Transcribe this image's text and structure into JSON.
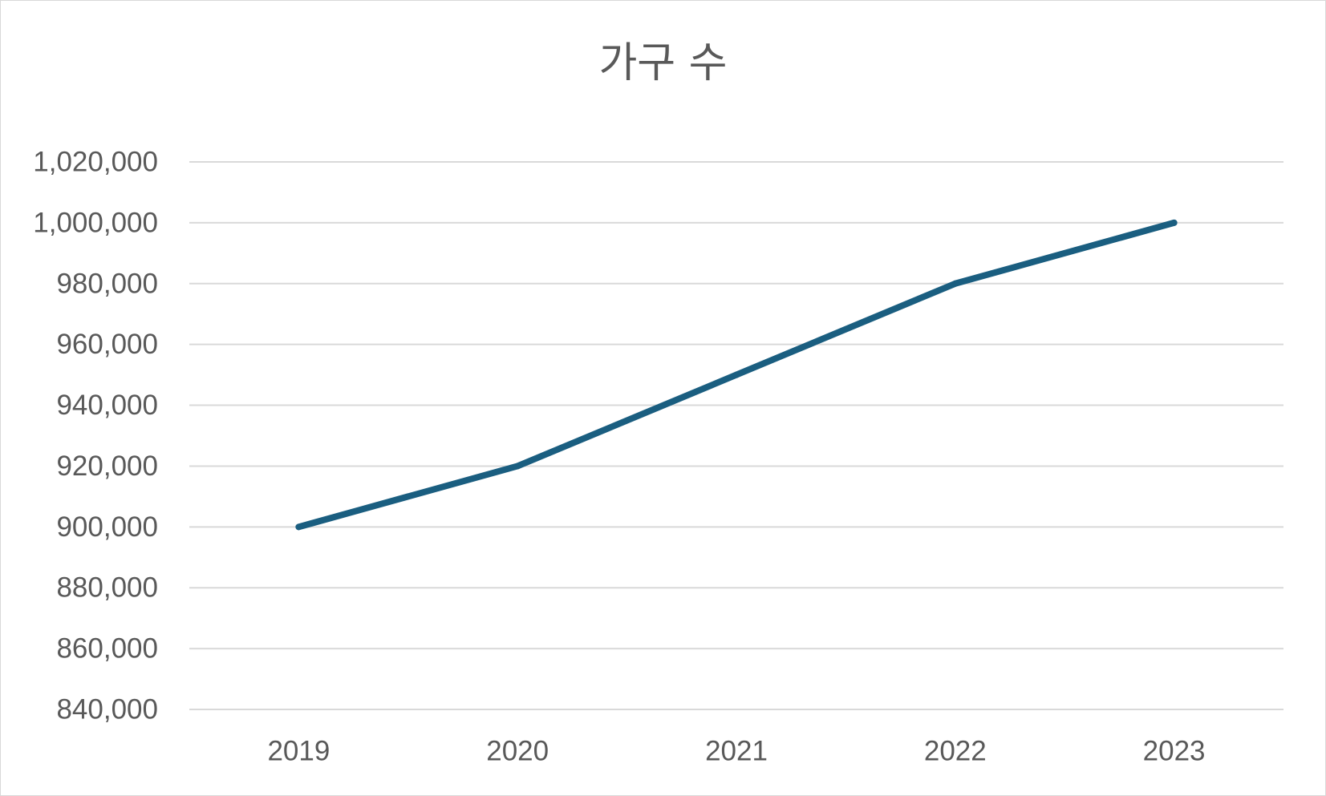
{
  "chart_data": {
    "type": "line",
    "title": "가구 수",
    "xlabel": "",
    "ylabel": "",
    "categories": [
      "2019",
      "2020",
      "2021",
      "2022",
      "2023"
    ],
    "series": [
      {
        "values": [
          900000,
          920000,
          950000,
          980000,
          1000000
        ],
        "color": "#1a5e80"
      }
    ],
    "ylim": [
      840000,
      1020000
    ],
    "ytick_step": 20000,
    "ytick_labels": [
      "840,000",
      "860,000",
      "880,000",
      "900,000",
      "920,000",
      "940,000",
      "960,000",
      "980,000",
      "1,000,000",
      "1,020,000"
    ],
    "grid": true,
    "gridline_color": "#d9d9d9",
    "text_color": "#595959",
    "legend": "none"
  }
}
